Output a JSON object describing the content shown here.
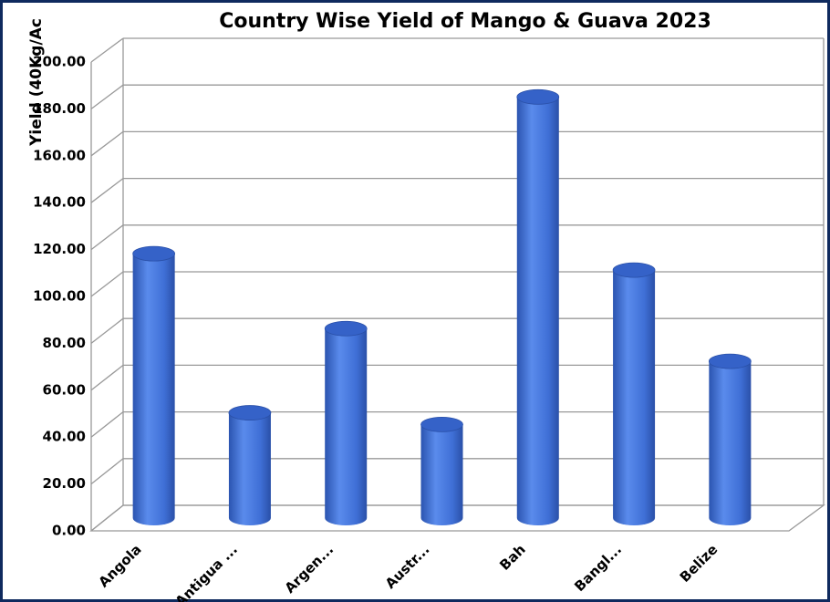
{
  "chart_data": {
    "type": "bar3d",
    "title": "Country Wise Yield of Mango & Guava 2023",
    "y_label": "Yield (40Kg/Ac",
    "categories": [
      "Angola",
      "Antigua ...",
      "Argen...",
      "Austr...",
      "Bah",
      "Bangl...",
      "Belize"
    ],
    "values": [
      113,
      45,
      81,
      40,
      180,
      106,
      67
    ],
    "color": "#3f6fd6",
    "ylim": [
      0,
      200
    ],
    "yticks": [
      {
        "value": 0,
        "label": "0.00"
      },
      {
        "value": 20,
        "label": "20.00"
      },
      {
        "value": 40,
        "label": "40.00"
      },
      {
        "value": 60,
        "label": "60.00"
      },
      {
        "value": 80,
        "label": "80.00"
      },
      {
        "value": 100,
        "label": "100.00"
      },
      {
        "value": 120,
        "label": "120.00"
      },
      {
        "value": 140,
        "label": "140.00"
      },
      {
        "value": 160,
        "label": "160.00"
      },
      {
        "value": 180,
        "label": "180.00"
      },
      {
        "value": 200,
        "label": "200.00"
      }
    ],
    "grid": true
  }
}
